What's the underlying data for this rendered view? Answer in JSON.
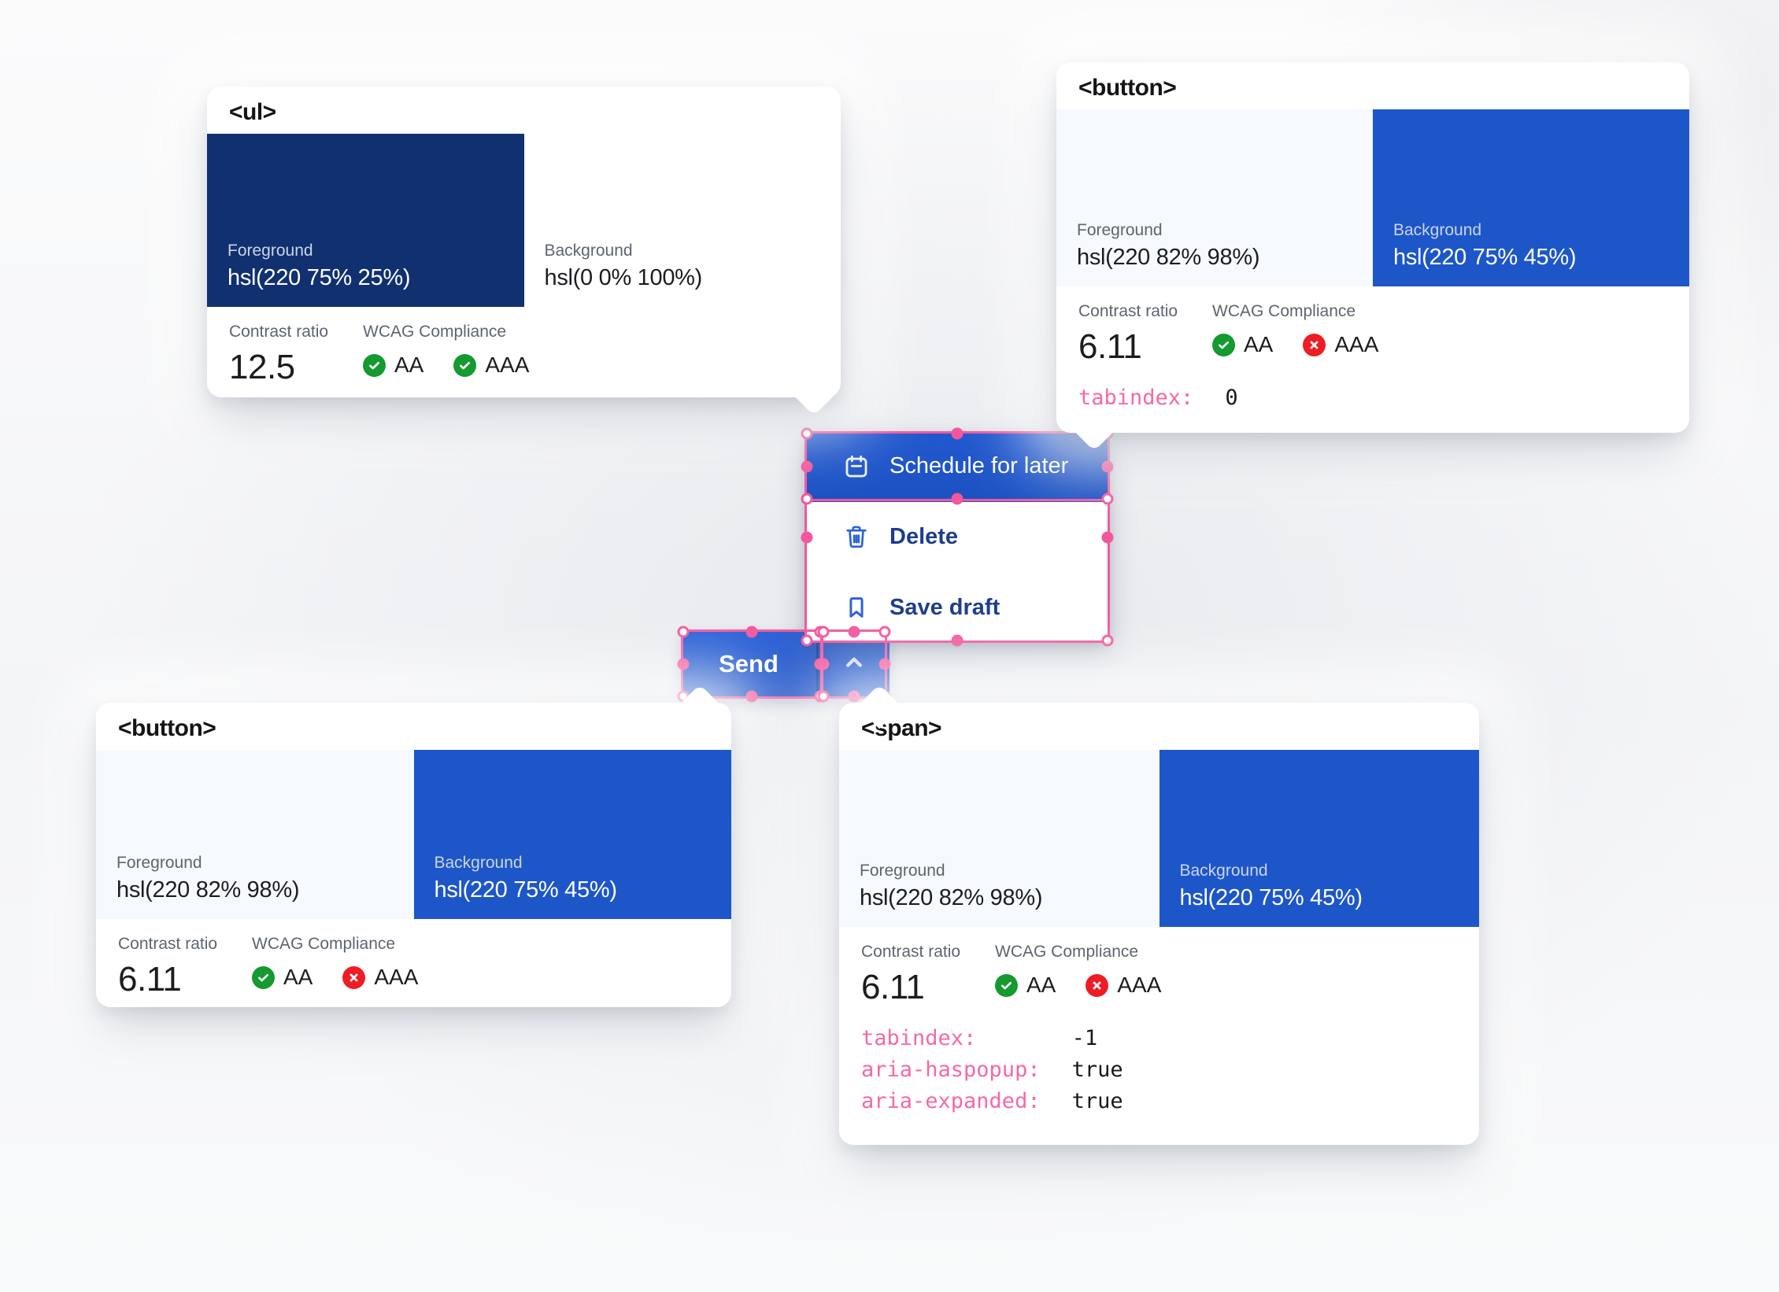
{
  "colors": {
    "accent_blue": "#1d56c9",
    "navy_foreground": "#103070",
    "light_foreground": "#f6f9fe",
    "menu_text_navy": "#1d3c8c",
    "icon_blue": "#2d62d8",
    "selection_pink": "#f2579d",
    "attr_pink": "#f768a9",
    "pass_green": "#149a2f",
    "fail_red": "#ee1d25"
  },
  "labels": {
    "foreground": "Foreground",
    "background": "Background",
    "contrast_ratio": "Contrast ratio",
    "wcag": "WCAG Compliance",
    "aa": "AA",
    "aaa": "AAA"
  },
  "cards": {
    "ul": {
      "tag": "<ul>",
      "foreground_value": "hsl(220 75% 25%)",
      "background_value": "hsl(0 0% 100%)",
      "contrast": "12.5",
      "aa_status": "pass",
      "aaa_status": "pass",
      "attrs": []
    },
    "button_top": {
      "tag": "<button>",
      "foreground_value": "hsl(220 82% 98%)",
      "background_value": "hsl(220 75% 45%)",
      "contrast": "6.11",
      "aa_status": "pass",
      "aaa_status": "fail",
      "attrs": [
        {
          "name": "tabindex:",
          "value": "0"
        }
      ]
    },
    "button_bottom": {
      "tag": "<button>",
      "foreground_value": "hsl(220 82% 98%)",
      "background_value": "hsl(220 75% 45%)",
      "contrast": "6.11",
      "aa_status": "pass",
      "aaa_status": "fail",
      "attrs": []
    },
    "span": {
      "tag": "<span>",
      "foreground_value": "hsl(220 82% 98%)",
      "background_value": "hsl(220 75% 45%)",
      "contrast": "6.11",
      "aa_status": "pass",
      "aaa_status": "fail",
      "attrs": [
        {
          "name": "tabindex:",
          "value": "-1"
        },
        {
          "name": "aria-haspopup:",
          "value": "true"
        },
        {
          "name": "aria-expanded:",
          "value": "true"
        }
      ]
    }
  },
  "menu": {
    "items": [
      {
        "label": "Schedule for later",
        "icon": "calendar-icon",
        "selected": true
      },
      {
        "label": "Delete",
        "icon": "trash-icon",
        "selected": false
      },
      {
        "label": "Save draft",
        "icon": "bookmark-icon",
        "selected": false
      }
    ]
  },
  "split_button": {
    "send_label": "Send"
  }
}
